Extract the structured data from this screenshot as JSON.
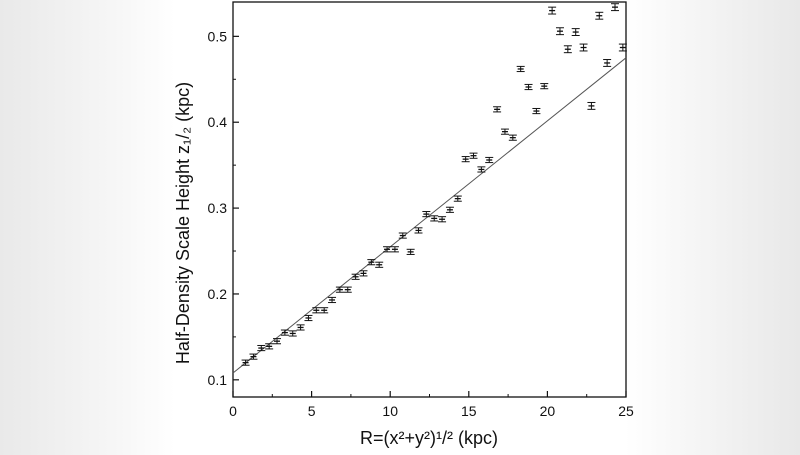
{
  "chart_data": {
    "type": "scatter",
    "title": "",
    "xlabel": "R=(x²+y²)¹/² (kpc)",
    "ylabel": "Half-Density Scale Height z₁/₂ (kpc)",
    "xlim": [
      0,
      25
    ],
    "ylim": [
      0.08,
      0.54
    ],
    "xticks": [
      "0",
      "5",
      "10",
      "15",
      "20",
      "25"
    ],
    "xtick_values": [
      0,
      5,
      10,
      15,
      20,
      25
    ],
    "yticks": [
      "0.1",
      "0.2",
      "0.3",
      "0.4",
      "0.5"
    ],
    "ytick_values": [
      0.1,
      0.2,
      0.3,
      0.4,
      0.5
    ],
    "grid": false,
    "colors": {
      "marks": "#111111",
      "fit_line": "#555555"
    },
    "series": [
      {
        "type": "scatter-errorbar",
        "x": [
          0.8,
          1.3,
          1.8,
          2.3,
          2.8,
          3.3,
          3.8,
          4.3,
          4.8,
          5.3,
          5.8,
          6.3,
          6.8,
          7.3,
          7.8,
          8.3,
          8.8,
          9.3,
          9.8,
          10.3,
          10.8,
          11.3,
          11.8,
          12.3,
          12.8,
          13.3,
          13.8,
          14.3,
          14.8,
          15.3,
          15.8,
          16.3,
          16.8,
          17.3,
          17.8,
          18.3,
          18.8,
          19.3,
          19.8,
          20.3,
          20.8,
          21.3,
          21.8,
          22.3,
          22.8,
          23.3,
          23.8,
          24.3,
          24.8
        ],
        "y": [
          0.12,
          0.127,
          0.137,
          0.139,
          0.145,
          0.155,
          0.154,
          0.161,
          0.172,
          0.181,
          0.181,
          0.193,
          0.205,
          0.205,
          0.22,
          0.224,
          0.237,
          0.234,
          0.252,
          0.252,
          0.268,
          0.249,
          0.274,
          0.293,
          0.288,
          0.287,
          0.298,
          0.311,
          0.357,
          0.361,
          0.345,
          0.356,
          0.415,
          0.389,
          0.382,
          0.462,
          0.441,
          0.413,
          0.442,
          0.53,
          0.506,
          0.485,
          0.505,
          0.487,
          0.419,
          0.524,
          0.469,
          0.534,
          0.487
        ],
        "yerr": [
          0.003,
          0.003,
          0.003,
          0.003,
          0.003,
          0.003,
          0.003,
          0.003,
          0.003,
          0.003,
          0.003,
          0.003,
          0.003,
          0.003,
          0.003,
          0.003,
          0.003,
          0.003,
          0.003,
          0.003,
          0.003,
          0.003,
          0.003,
          0.003,
          0.003,
          0.003,
          0.003,
          0.003,
          0.003,
          0.003,
          0.003,
          0.003,
          0.003,
          0.003,
          0.003,
          0.003,
          0.003,
          0.003,
          0.003,
          0.004,
          0.004,
          0.004,
          0.004,
          0.004,
          0.004,
          0.004,
          0.004,
          0.004,
          0.004
        ]
      },
      {
        "type": "line",
        "x": [
          0,
          25
        ],
        "y": [
          0.108,
          0.475
        ]
      }
    ]
  }
}
